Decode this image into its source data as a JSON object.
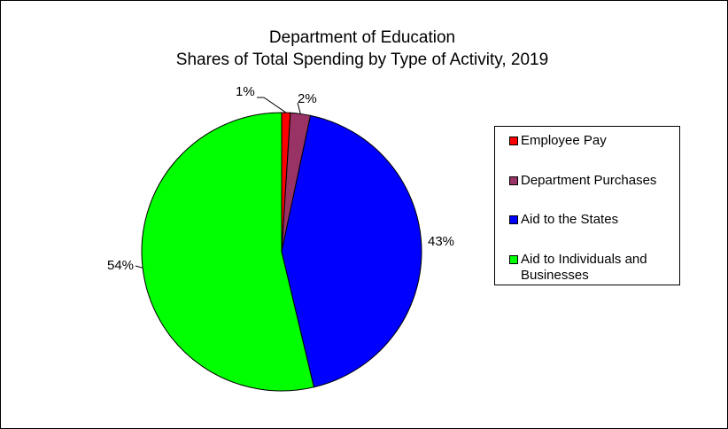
{
  "chart_data": {
    "type": "pie",
    "title": "Department of Education",
    "subtitle": "Shares of Total Spending by Type of Activity, 2019",
    "slices": [
      {
        "label": "Employee Pay",
        "value": 1,
        "display": "1%",
        "color": "#ff0000"
      },
      {
        "label": "Department Purchases",
        "value": 2.3,
        "display": "2%",
        "color": "#993366"
      },
      {
        "label": "Aid to the States",
        "value": 43,
        "display": "43%",
        "color": "#0000ff"
      },
      {
        "label": "Aid to Individuals and Businesses",
        "value": 53.7,
        "display": "54%",
        "color": "#00ff00"
      }
    ],
    "legend": {
      "placement": "right",
      "entries": [
        {
          "line1": "Employee Pay",
          "line2": ""
        },
        {
          "line1": "Department Purchases",
          "line2": ""
        },
        {
          "line1": "Aid to the States",
          "line2": ""
        },
        {
          "line1": "Aid to Individuals and",
          "line2": "Businesses"
        }
      ]
    },
    "start_angle_deg": 0,
    "direction": "clockwise"
  }
}
